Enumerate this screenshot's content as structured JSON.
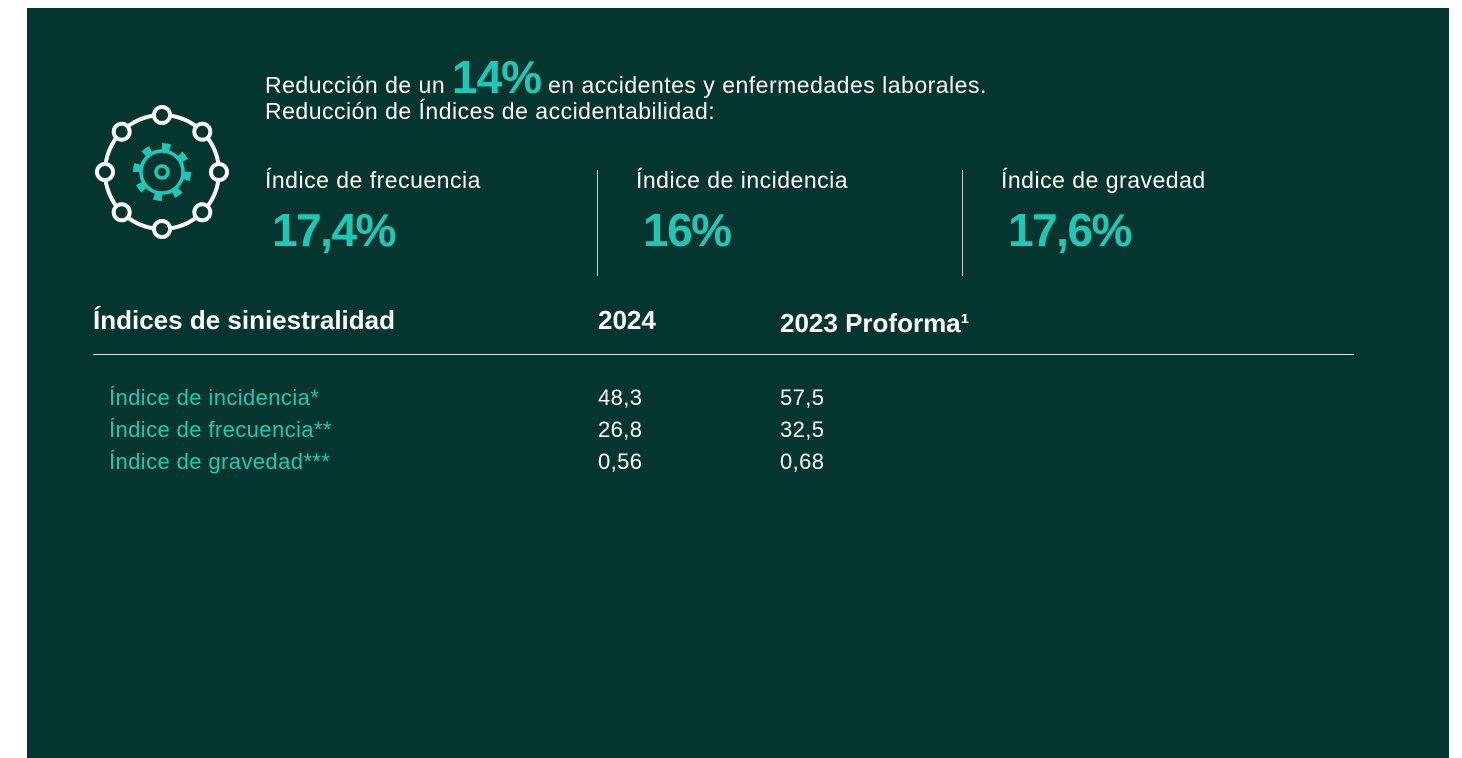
{
  "header": {
    "line1": {
      "before": "Reducción de un",
      "highlight": "14%",
      "after": "en accidentes y enfermedades laborales."
    },
    "line2": "Reducción de Índices de accidentabilidad:"
  },
  "kpis": [
    {
      "label": "Índice de frecuencia",
      "value": "17,4%"
    },
    {
      "label": "Índice de incidencia",
      "value": "16%"
    },
    {
      "label": "Índice de gravedad",
      "value": "17,6%"
    }
  ],
  "table": {
    "headers": [
      "Índices de siniestralidad",
      "2024",
      "2023 Proforma¹"
    ],
    "rows": [
      [
        "Índice de incidencia*",
        "48,3",
        "57,5"
      ],
      [
        "Índice de frecuencia**",
        "26,8",
        "32,5"
      ],
      [
        "Índice de gravedad***",
        "0,56",
        "0,68"
      ]
    ]
  }
}
